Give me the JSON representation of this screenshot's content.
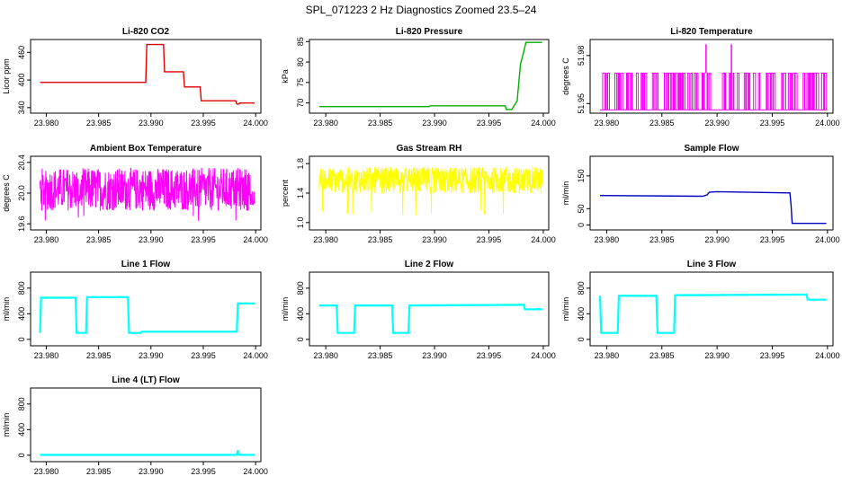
{
  "figure_title": "SPL_071223 2 Hz Diagnostics Zoomed 23.5–24",
  "chart_data": [
    {
      "type": "line",
      "title": "Li-820 CO2",
      "ylabel": "Licor ppm",
      "color": "#e00000",
      "xlim": [
        23.9785,
        24.0005
      ],
      "ylim": [
        328,
        488
      ],
      "xticks": [
        "23.980",
        "23.985",
        "23.990",
        "23.995",
        "24.000"
      ],
      "xtick_values": [
        23.98,
        23.985,
        23.99,
        23.995,
        24.0
      ],
      "yticks": [
        "340",
        "400",
        "460"
      ],
      "ytick_values": [
        340,
        400,
        460
      ],
      "series": [
        {
          "x": [
            23.9794,
            23.9895,
            23.9896,
            23.9912,
            23.9913,
            23.9931,
            23.9932,
            23.9947,
            23.9948,
            23.9981,
            23.9982,
            23.9984,
            23.9985,
            23.9999
          ],
          "y": [
            395,
            395,
            477,
            477,
            418,
            418,
            385,
            385,
            355,
            355,
            348,
            348,
            350,
            350
          ]
        }
      ]
    },
    {
      "type": "line",
      "title": "Li-820 Pressure",
      "ylabel": "kPa",
      "color": "#00b000",
      "xlim": [
        23.9785,
        24.0005
      ],
      "ylim": [
        67.5,
        85.5
      ],
      "xticks": [
        "23.980",
        "23.985",
        "23.990",
        "23.995",
        "24.000"
      ],
      "xtick_values": [
        23.98,
        23.985,
        23.99,
        23.995,
        24.0
      ],
      "yticks": [
        "70",
        "75",
        "80",
        "85"
      ],
      "ytick_values": [
        70,
        75,
        80,
        85
      ],
      "series": [
        {
          "x": [
            23.9794,
            23.9895,
            23.9896,
            23.9965,
            23.9966,
            23.9971,
            23.9976,
            23.9979,
            23.9982,
            23.9984,
            23.9999
          ],
          "y": [
            69.1,
            69.1,
            69.3,
            69.3,
            68.4,
            68.4,
            70.5,
            79.5,
            82.5,
            84.8,
            84.8
          ]
        }
      ]
    },
    {
      "type": "line",
      "title": "Li-820 Temperature",
      "ylabel": "degrees C",
      "color": "#ff00ff",
      "xlim": [
        23.9785,
        24.0005
      ],
      "ylim": [
        51.944,
        51.99
      ],
      "xticks": [
        "23.980",
        "23.985",
        "23.990",
        "23.995",
        "24.000"
      ],
      "xtick_values": [
        23.98,
        23.985,
        23.99,
        23.995,
        24.0
      ],
      "yticks": [
        "51.95",
        "51.98"
      ],
      "ytick_values": [
        51.95,
        51.98
      ],
      "series": [
        {
          "x": [
            23.9794,
            23.9999
          ],
          "y": [
            51.946,
            51.969
          ]
        }
      ],
      "spikes": [
        {
          "x": 23.989,
          "y": 51.987
        },
        {
          "x": 23.9913,
          "y": 51.987
        }
      ]
    },
    {
      "type": "line",
      "title": "Ambient Box Temperature",
      "ylabel": "degrees C",
      "color": "#ff00ff",
      "xlim": [
        23.9785,
        24.0005
      ],
      "ylim": [
        19.52,
        20.48
      ],
      "xticks": [
        "23.980",
        "23.985",
        "23.990",
        "23.995",
        "24.000"
      ],
      "xtick_values": [
        23.98,
        23.985,
        23.99,
        23.995,
        24.0
      ],
      "yticks": [
        "19.6",
        "20.0",
        "20.4"
      ],
      "ytick_values": [
        19.6,
        20.0,
        20.4
      ],
      "series": [
        {
          "x": [
            23.9794,
            23.9999
          ],
          "y": [
            19.7,
            20.4
          ]
        }
      ]
    },
    {
      "type": "line",
      "title": "Gas Stream RH",
      "ylabel": "percent",
      "color": "#ffff00",
      "xlim": [
        23.9785,
        24.0005
      ],
      "ylim": [
        0.9,
        1.9
      ],
      "xticks": [
        "23.980",
        "23.985",
        "23.990",
        "23.995",
        "24.000"
      ],
      "xtick_values": [
        23.98,
        23.985,
        23.99,
        23.995,
        24.0
      ],
      "yticks": [
        "1.0",
        "1.4",
        "1.8"
      ],
      "ytick_values": [
        1.0,
        1.4,
        1.8
      ],
      "series": [
        {
          "x": [
            23.9794,
            23.9999
          ],
          "y": [
            1.35,
            1.8
          ]
        }
      ]
    },
    {
      "type": "line",
      "title": "Sample Flow",
      "ylabel": "ml/min",
      "color": "#0000c0",
      "xlim": [
        23.9785,
        24.0005
      ],
      "ylim": [
        -15,
        210
      ],
      "xticks": [
        "23.980",
        "23.985",
        "23.990",
        "23.995",
        "24.000"
      ],
      "xtick_values": [
        23.98,
        23.985,
        23.99,
        23.995,
        24.0
      ],
      "yticks": [
        "0",
        "50",
        "150"
      ],
      "ytick_values": [
        0,
        50,
        150
      ],
      "series": [
        {
          "x": [
            23.9794,
            23.9887,
            23.9891,
            23.9893,
            23.99,
            23.9966,
            23.9967,
            23.9968,
            23.9999
          ],
          "y": [
            90,
            88,
            92,
            100,
            102,
            98,
            60,
            5,
            5
          ]
        }
      ]
    },
    {
      "type": "line",
      "title": "Line 1 Flow",
      "ylabel": "ml/min",
      "color": "#00ffff",
      "xlim": [
        23.9785,
        24.0005
      ],
      "ylim": [
        -100,
        1050
      ],
      "xticks": [
        "23.980",
        "23.985",
        "23.990",
        "23.995",
        "24.000"
      ],
      "xtick_values": [
        23.98,
        23.985,
        23.99,
        23.995,
        24.0
      ],
      "yticks": [
        "0",
        "400",
        "800"
      ],
      "ytick_values": [
        0,
        400,
        800
      ],
      "series": [
        {
          "x": [
            23.9794,
            23.9795,
            23.9828,
            23.9829,
            23.9838,
            23.9839,
            23.9878,
            23.9879,
            23.989,
            23.9891,
            23.9982,
            23.9983,
            23.9999
          ],
          "y": [
            100,
            650,
            650,
            100,
            100,
            660,
            660,
            100,
            100,
            120,
            120,
            560,
            560
          ]
        }
      ]
    },
    {
      "type": "line",
      "title": "Line 2 Flow",
      "ylabel": "ml/min",
      "color": "#00ffff",
      "xlim": [
        23.9785,
        24.0005
      ],
      "ylim": [
        -100,
        1050
      ],
      "xticks": [
        "23.980",
        "23.985",
        "23.990",
        "23.995",
        "24.000"
      ],
      "xtick_values": [
        23.98,
        23.985,
        23.99,
        23.995,
        24.0
      ],
      "yticks": [
        "0",
        "400",
        "800"
      ],
      "ytick_values": [
        0,
        400,
        800
      ],
      "series": [
        {
          "x": [
            23.9794,
            23.981,
            23.9811,
            23.9826,
            23.9827,
            23.9861,
            23.9862,
            23.9876,
            23.9877,
            23.9982,
            23.9983,
            23.9999
          ],
          "y": [
            530,
            530,
            100,
            100,
            530,
            530,
            100,
            100,
            530,
            540,
            470,
            470
          ]
        }
      ]
    },
    {
      "type": "line",
      "title": "Line 3 Flow",
      "ylabel": "ml/min",
      "color": "#00ffff",
      "xlim": [
        23.9785,
        24.0005
      ],
      "ylim": [
        -100,
        1050
      ],
      "xticks": [
        "23.980",
        "23.985",
        "23.990",
        "23.995",
        "24.000"
      ],
      "xtick_values": [
        23.98,
        23.985,
        23.99,
        23.995,
        24.0
      ],
      "yticks": [
        "0",
        "400",
        "800"
      ],
      "ytick_values": [
        0,
        400,
        800
      ],
      "series": [
        {
          "x": [
            23.9794,
            23.9795,
            23.981,
            23.9811,
            23.9845,
            23.9846,
            23.9861,
            23.9862,
            23.9981,
            23.9982,
            23.9999
          ],
          "y": [
            680,
            100,
            100,
            680,
            680,
            100,
            100,
            690,
            700,
            620,
            620
          ]
        }
      ]
    },
    {
      "type": "line",
      "title": "Line 4 (LT) Flow",
      "ylabel": "ml/min",
      "color": "#00ffff",
      "xlim": [
        23.9785,
        24.0005
      ],
      "ylim": [
        -100,
        1050
      ],
      "xticks": [
        "23.980",
        "23.985",
        "23.990",
        "23.995",
        "24.000"
      ],
      "xtick_values": [
        23.98,
        23.985,
        23.99,
        23.995,
        24.0
      ],
      "yticks": [
        "0",
        "400",
        "800"
      ],
      "ytick_values": [
        0,
        400,
        800
      ],
      "series": [
        {
          "x": [
            23.9794,
            23.9982,
            23.9983,
            23.9984,
            23.9999
          ],
          "y": [
            5,
            5,
            80,
            5,
            5
          ]
        }
      ]
    }
  ]
}
